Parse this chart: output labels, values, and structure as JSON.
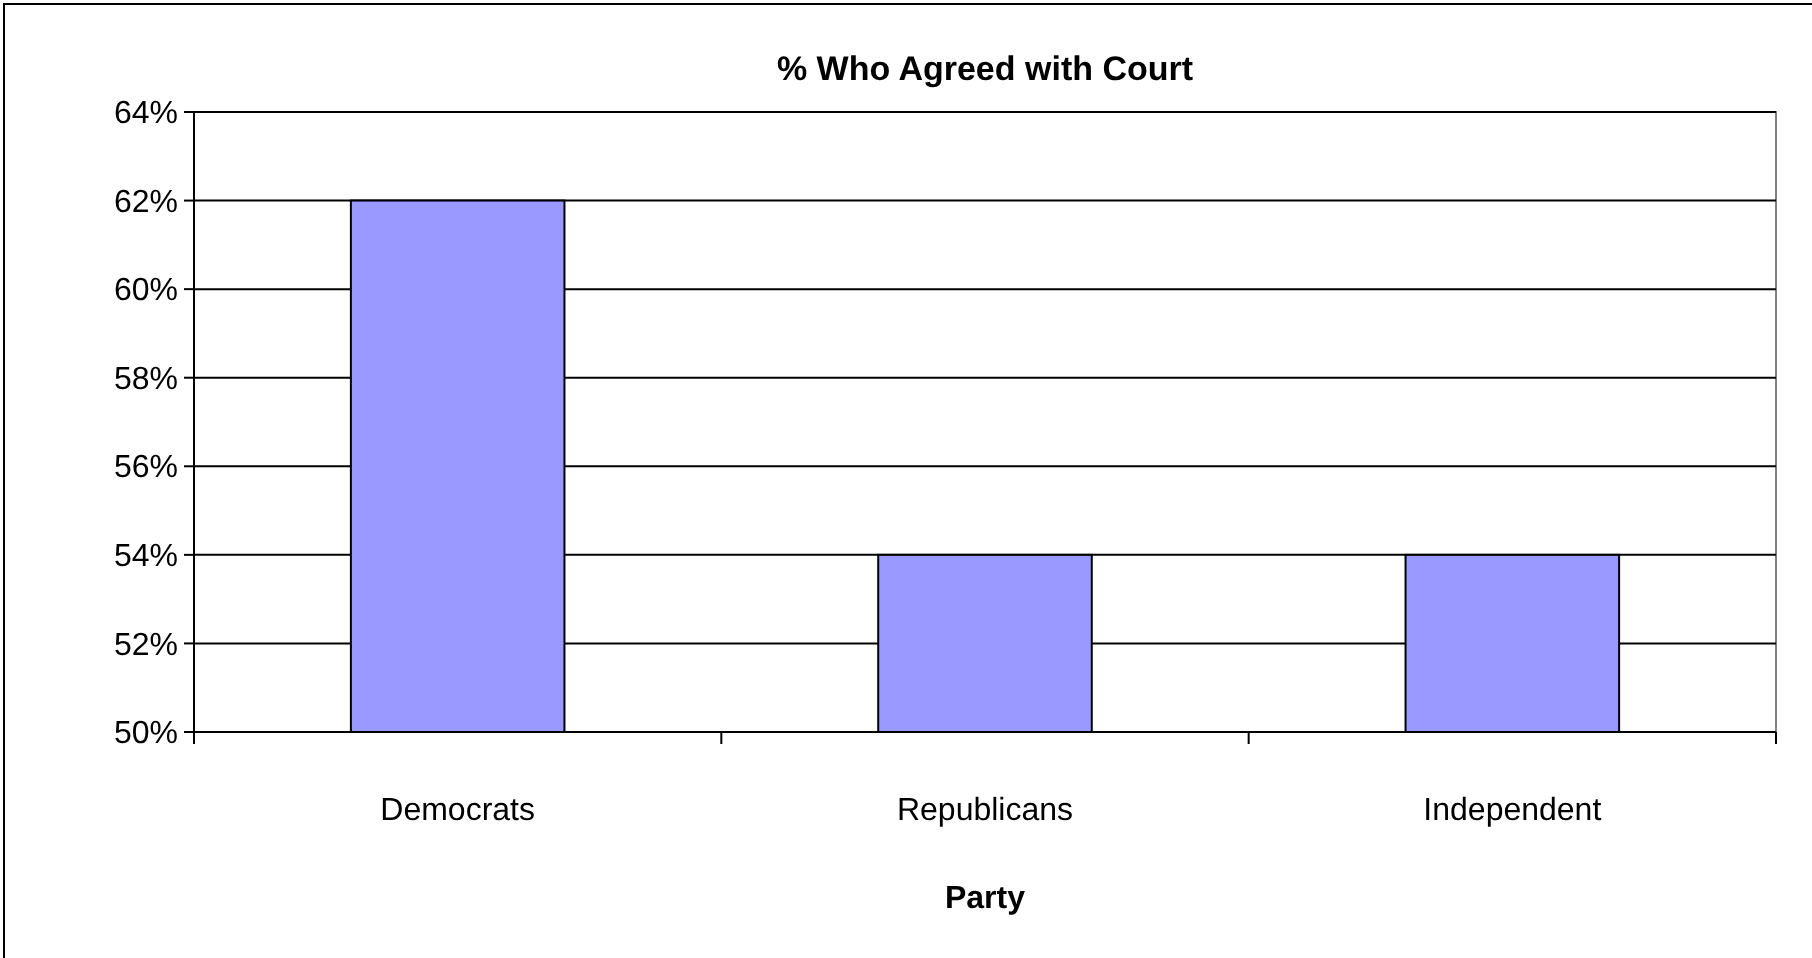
{
  "chart_data": {
    "type": "bar",
    "title": "% Who Agreed with Court",
    "xlabel": "Party",
    "categories": [
      "Democrats",
      "Republicans",
      "Independent"
    ],
    "values": [
      62,
      54,
      54
    ],
    "color": "#9999ff",
    "ylim": [
      50,
      64
    ],
    "yticks": [
      {
        "value": 50,
        "label": "50%"
      },
      {
        "value": 52,
        "label": "52%"
      },
      {
        "value": 54,
        "label": "54%"
      },
      {
        "value": 56,
        "label": "56%"
      },
      {
        "value": 58,
        "label": "58%"
      },
      {
        "value": 60,
        "label": "60%"
      },
      {
        "value": 62,
        "label": "62%"
      },
      {
        "value": 64,
        "label": "64%"
      }
    ],
    "grid": "y"
  }
}
